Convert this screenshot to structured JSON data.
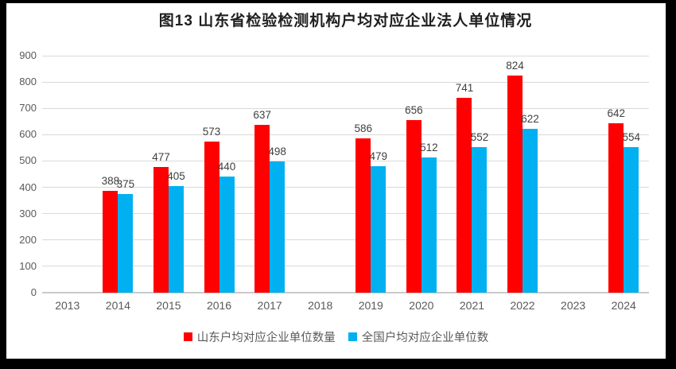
{
  "title": "图13 山东省检验检测机构户均对应企业法人单位情况",
  "colors": {
    "series_shandong": "#FF0000",
    "series_national": "#00B0F0",
    "gridline": "#D9D9D9",
    "axis_line": "#C9C9C9",
    "tick_text": "#595959",
    "value_text": "#3F3F3F",
    "title_text": "#1F1F1F",
    "frame": "#000000",
    "background": "#FFFFFF"
  },
  "chart_data": {
    "type": "bar",
    "title": "图13 山东省检验检测机构户均对应企业法人单位情况",
    "categories": [
      "2013",
      "2014",
      "2015",
      "2016",
      "2017",
      "2018",
      "2019",
      "2020",
      "2021",
      "2022",
      "2023",
      "2024"
    ],
    "series": [
      {
        "name": "山东户均对应企业单位数量",
        "key": "shandong",
        "color": "#FF0000",
        "values": [
          null,
          388,
          477,
          573,
          637,
          null,
          586,
          656,
          741,
          824,
          null,
          642
        ]
      },
      {
        "name": "全国户均对应企业单位数",
        "key": "national",
        "color": "#00B0F0",
        "values": [
          null,
          375,
          405,
          440,
          498,
          null,
          479,
          512,
          552,
          622,
          null,
          554
        ]
      }
    ],
    "xlabel": "",
    "ylabel": "",
    "ylim": [
      0,
      900
    ],
    "ytick_step": 100,
    "yticks": [
      0,
      100,
      200,
      300,
      400,
      500,
      600,
      700,
      800,
      900
    ],
    "grid": true,
    "value_labels": true,
    "legend_position": "bottom"
  }
}
